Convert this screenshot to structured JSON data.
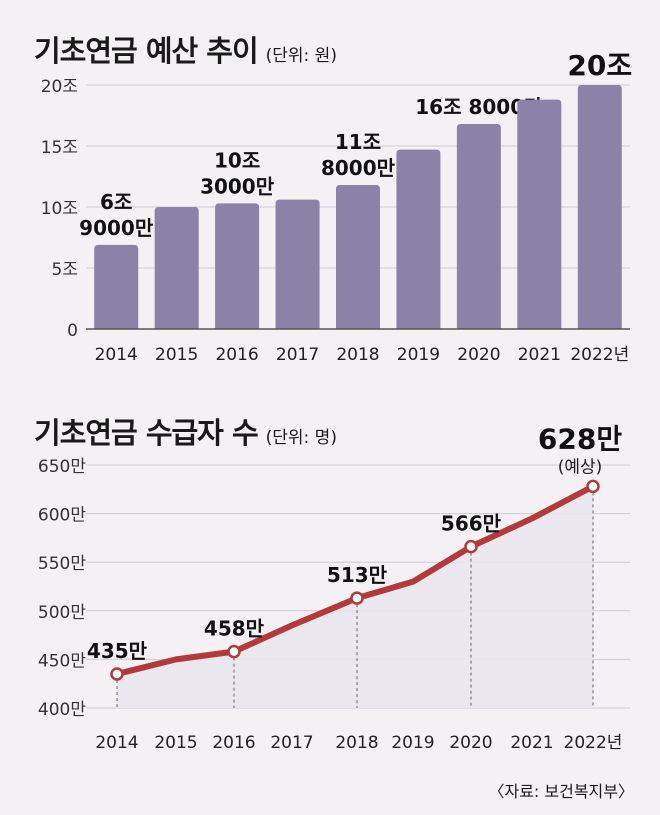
{
  "source": "〈자료: 보건복지부〉",
  "chart_data": [
    {
      "type": "bar",
      "title": "기초연금 예산 추이",
      "unit": "(단위: 원)",
      "categories": [
        "2014",
        "2015",
        "2016",
        "2017",
        "2018",
        "2019",
        "2020",
        "2021",
        "2022년"
      ],
      "values": [
        6.9,
        10.0,
        10.3,
        10.6,
        11.8,
        14.7,
        16.8,
        18.8,
        20.0
      ],
      "data_labels": [
        [
          "6조",
          "9000만"
        ],
        [],
        [
          "10조",
          "3000만"
        ],
        [],
        [
          "11조",
          "8000만"
        ],
        [],
        [
          "16조 8000만"
        ],
        [],
        [
          "20조"
        ]
      ],
      "yticks": [
        "0",
        "5조",
        "10조",
        "15조",
        "20조"
      ],
      "ylim": [
        0,
        20
      ],
      "grid": true,
      "color": "#8b82a8"
    },
    {
      "type": "line",
      "title": "기초연금 수급자 수",
      "unit": "(단위: 명)",
      "categories": [
        "2014",
        "2015",
        "2016",
        "2017",
        "2018",
        "2019",
        "2020",
        "2021",
        "2022년"
      ],
      "values": [
        435,
        450,
        458,
        485,
        513,
        530,
        566,
        595,
        628
      ],
      "markers": [
        true,
        false,
        true,
        false,
        true,
        false,
        true,
        false,
        true
      ],
      "data_labels": [
        "435만",
        "",
        "458만",
        "",
        "513만",
        "",
        "566만",
        "",
        "628만"
      ],
      "annotation": "(예상)",
      "yticks": [
        "400만",
        "450만",
        "500만",
        "550만",
        "600만",
        "650만"
      ],
      "ylim": [
        400,
        650
      ],
      "grid": true,
      "color": "#b23a3c"
    }
  ]
}
